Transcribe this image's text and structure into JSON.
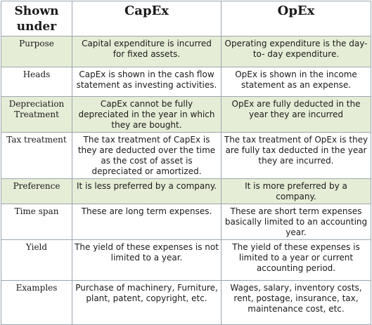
{
  "table": {
    "headers": [
      "Shown under",
      "CapEx",
      "OpEx"
    ],
    "rows": [
      {
        "label": "Purpose",
        "capex": "Capital expenditure is incurred for fixed assets.",
        "opex": "Operating expenditure is the day- to- day expenditure."
      },
      {
        "label": "Heads",
        "capex": "CapEx is shown in the cash flow statement as investing activities.",
        "opex": "OpEx is shown in the income statement as an expense."
      },
      {
        "label": "Depreciation Treatment",
        "capex": "CapEx cannot be fully depreciated in the year in which they are bought.",
        "opex": "OpEx are fully deducted in the year they are incurred"
      },
      {
        "label": "Tax treatment",
        "capex": "The tax treatment of CapEx is they are deducted over the time as the cost of asset is depreciated or amortized.",
        "opex": "The tax treatment of OpEx is they are fully tax deducted in the year they are incurred."
      },
      {
        "label": "Preference",
        "capex": "It is less preferred by a company.",
        "opex": "It is more preferred by a company."
      },
      {
        "label": "Time span",
        "capex": "These are long term expenses.",
        "opex": "These are short term expenses basically limited to an accounting year."
      },
      {
        "label": "Yield",
        "capex": "The yield of these expenses is not limited to a year.",
        "opex": "The yield of these expenses is limited to a year or current accounting period."
      },
      {
        "label": "Examples",
        "capex": "Purchase of machinery, Furniture, plant, patent, copyright, etc.",
        "opex": "Wages, salary, inventory costs, rent, postage, insurance, tax, maintenance cost, etc."
      }
    ]
  },
  "colors": {
    "stripe": "#e6edd6",
    "border": "#9aa6b0",
    "background": "#ffffff"
  }
}
